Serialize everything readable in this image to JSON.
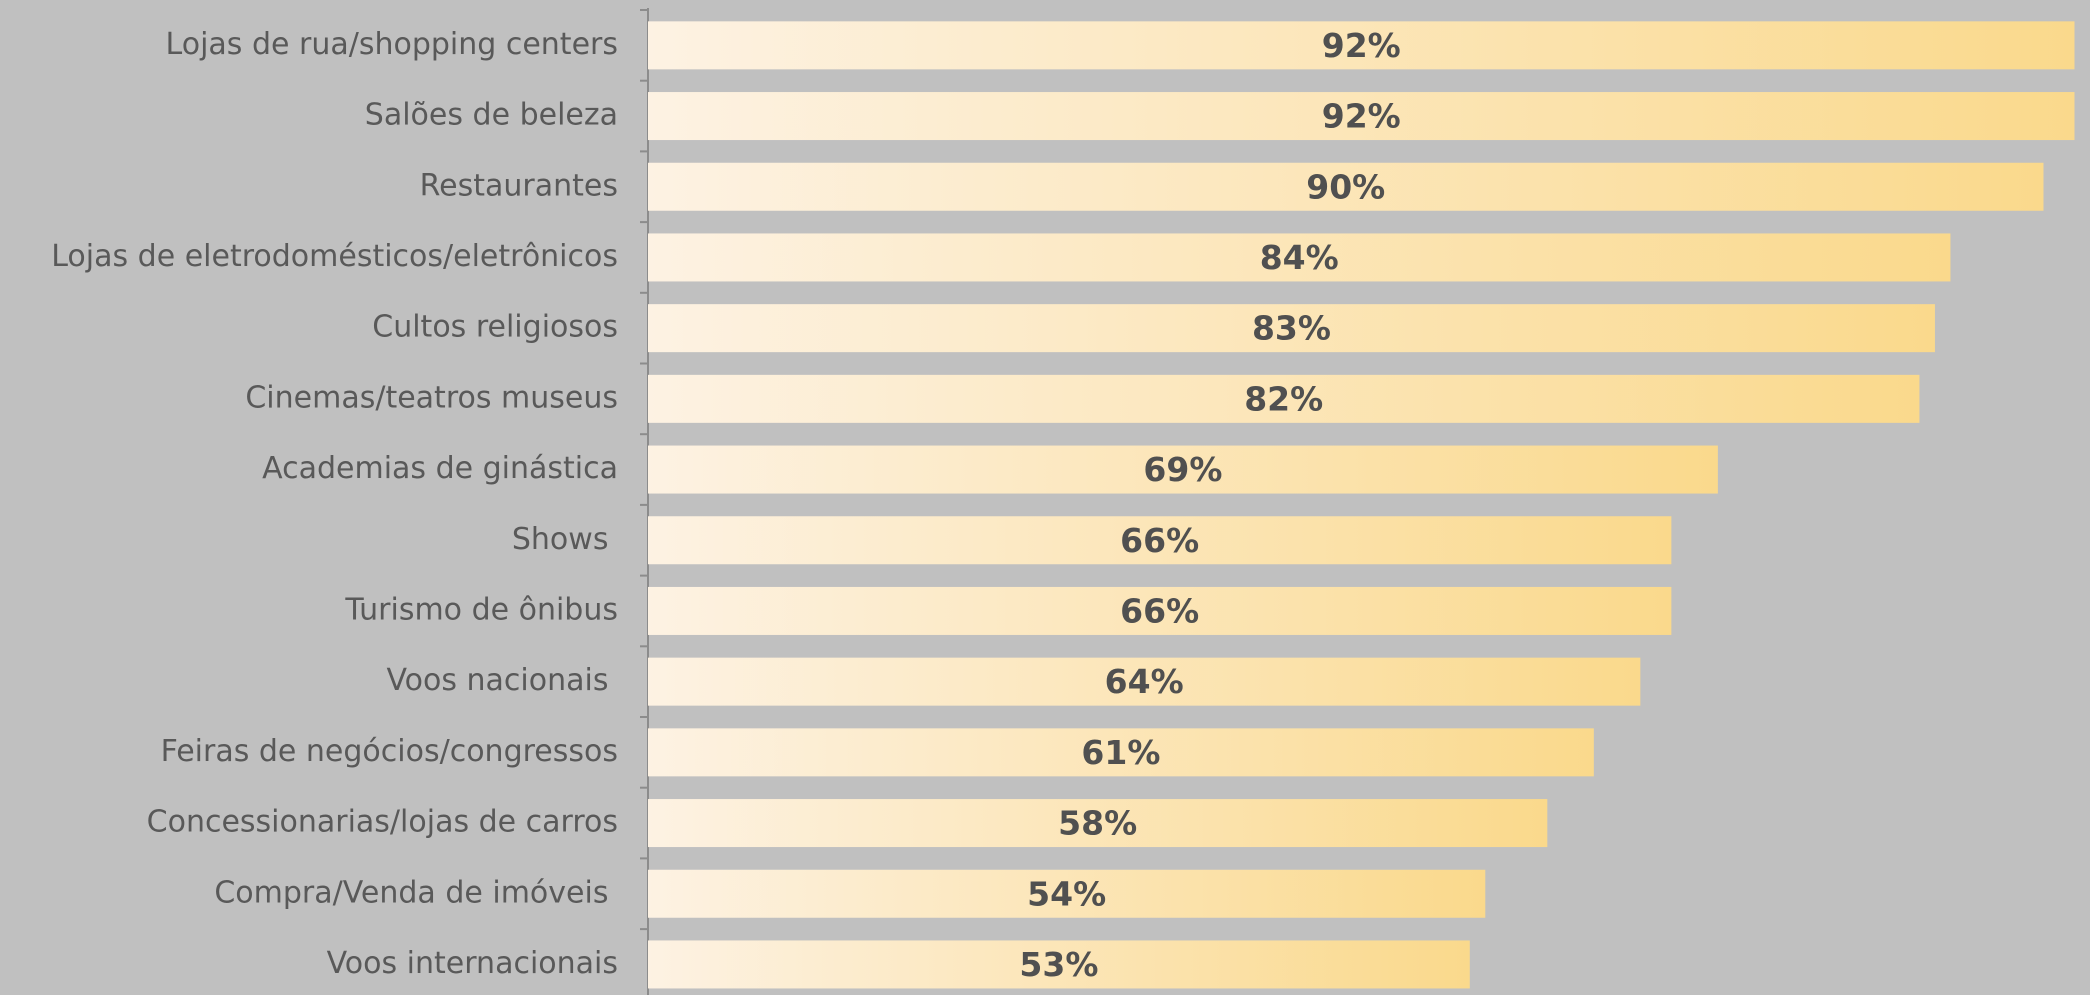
{
  "chart_data": {
    "type": "bar",
    "orientation": "horizontal",
    "categories": [
      "Lojas de rua/shopping centers",
      "Salões de beleza",
      "Restaurantes",
      "Lojas de eletrodomésticos/eletrônicos",
      "Cultos religiosos",
      "Cinemas/teatros museus",
      "Academias de ginástica",
      "Shows ",
      "Turismo de ônibus",
      "Voos nacionais ",
      "Feiras de negócios/congressos",
      "Concessionarias/lojas de carros",
      "Compra/Venda de imóveis ",
      "Voos internacionais"
    ],
    "values": [
      92,
      92,
      90,
      84,
      83,
      82,
      69,
      66,
      66,
      64,
      61,
      58,
      54,
      53
    ],
    "value_labels": [
      "92%",
      "92%",
      "90%",
      "84%",
      "83%",
      "82%",
      "69%",
      "66%",
      "66%",
      "64%",
      "61%",
      "58%",
      "54%",
      "53%"
    ],
    "color": [
      "#fdf2e3",
      "#fad98c"
    ],
    "xlim": [
      0,
      93
    ]
  }
}
